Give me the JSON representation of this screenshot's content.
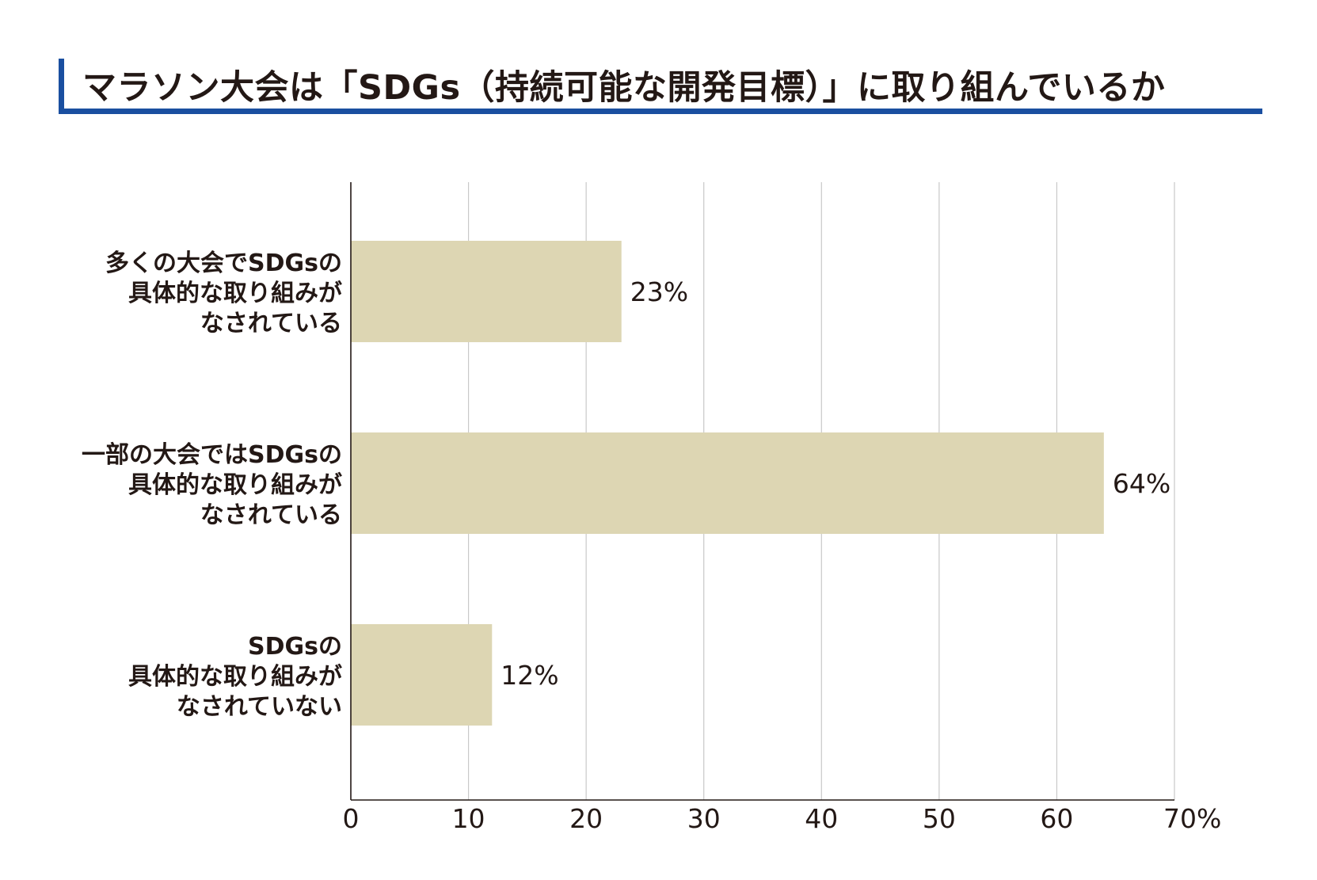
{
  "title": "マラソン大会は「SDGs（持続可能な開発目標）」に取り組んでいるか",
  "colors": {
    "bar": "#ddd6b3",
    "accent": "#1a4fa0",
    "text": "#231815",
    "grid": "#c8c8c8"
  },
  "chart_data": {
    "type": "bar",
    "orientation": "horizontal",
    "categories": [
      [
        "多くの大会でSDGsの",
        "具体的な取り組みが",
        "なされている"
      ],
      [
        "一部の大会ではSDGsの",
        "具体的な取り組みが",
        "なされている"
      ],
      [
        "SDGsの",
        "具体的な取り組みが",
        "なされていない"
      ]
    ],
    "values": [
      23,
      64,
      12
    ],
    "value_labels": [
      "23%",
      "64%",
      "12%"
    ],
    "xlim": [
      0,
      70
    ],
    "x_ticks": [
      "0",
      "10",
      "20",
      "30",
      "40",
      "50",
      "60",
      "70%"
    ],
    "grid": true
  }
}
